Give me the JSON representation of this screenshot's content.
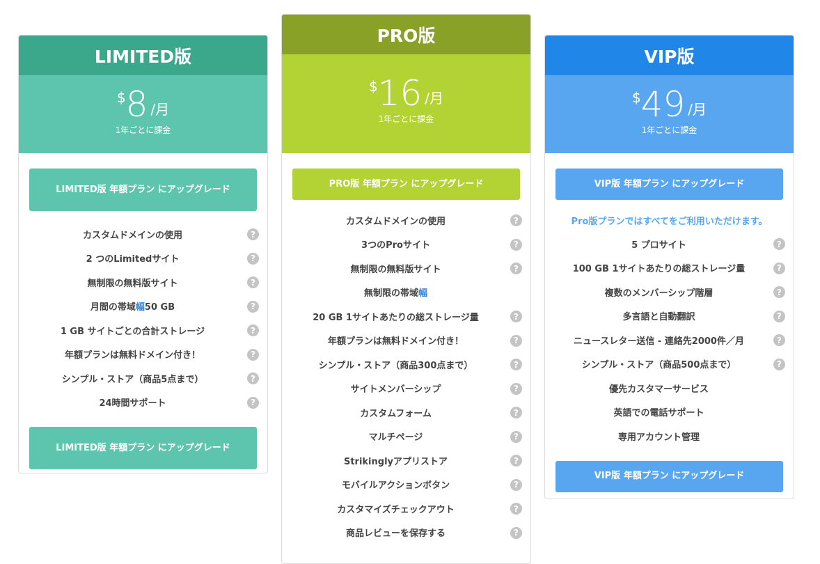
{
  "colors": {
    "limited_head": "#3ba78b",
    "limited_price": "#5dc4ad",
    "pro_head": "#88a126",
    "pro_price": "#b3d234",
    "vip_head": "#2087e8",
    "vip_price": "#59a6f0"
  },
  "plans": [
    {
      "id": "c1",
      "name": "LIMITED版",
      "currency": "$",
      "amount": "8",
      "per": "/月",
      "billing": "1年ごとに課金",
      "button": "LIMITED版 年額プラン にアップグレード",
      "note": "",
      "bottom_button": "LIMITED版 年額プラン にアップグレード",
      "features": [
        {
          "pre": "カスタムドメインの使用",
          "help": true
        },
        {
          "pre": "2 つのLimitedサイト",
          "help": true
        },
        {
          "pre": "無制限の無料版サイト",
          "help": true
        },
        {
          "pre": "月間の帯域",
          "hl": "幅",
          "post": "50 GB",
          "help": true
        },
        {
          "pre": "1 GB サイトごとの合計ストレージ",
          "help": true
        },
        {
          "pre": "年額プランは無料ドメイン付き！",
          "help": true
        },
        {
          "pre": "シンプル・ストア（商品5点まで）",
          "help": true
        },
        {
          "pre": "24時間サポート",
          "help": true
        }
      ]
    },
    {
      "id": "c2",
      "name": "PRO版",
      "currency": "$",
      "amount": "16",
      "per": "/月",
      "billing": "1年ごとに課金",
      "button": "PRO版 年額プラン にアップグレード",
      "note": "",
      "bottom_button": "",
      "features": [
        {
          "pre": "カスタムドメインの使用",
          "help": true
        },
        {
          "pre": "3つのProサイト",
          "help": true
        },
        {
          "pre": "無制限の無料版サイト",
          "help": true
        },
        {
          "pre": "無制限の帯域",
          "hl": "幅",
          "help": false
        },
        {
          "pre": "20 GB 1サイトあたりの総ストレージ量",
          "help": true
        },
        {
          "pre": "年額プランは無料ドメイン付き！",
          "help": true
        },
        {
          "pre": "シンプル・ストア（商品300点まで）",
          "help": true
        },
        {
          "pre": "サイトメンバーシップ",
          "help": true
        },
        {
          "pre": "カスタムフォーム",
          "help": true
        },
        {
          "pre": "マルチページ",
          "help": true
        },
        {
          "pre": "Strikinglyアプリストア",
          "help": true
        },
        {
          "pre": "モバイルアクションボタン",
          "help": true
        },
        {
          "pre": "カスタマイズチェックアウト",
          "help": true
        },
        {
          "pre": "商品レビューを保存する",
          "help": true
        }
      ]
    },
    {
      "id": "c3",
      "name": "VIP版",
      "currency": "$",
      "amount": "49",
      "per": "/月",
      "billing": "1年ごとに課金",
      "button": "VIP版 年額プラン にアップグレード",
      "note": "Pro版プランではすべてをご利用いただけます。",
      "bottom_button": "VIP版 年額プラン にアップグレード",
      "features": [
        {
          "pre": "5 プロサイト",
          "help": true
        },
        {
          "pre": "100 GB 1サイトあたりの総ストレージ量",
          "help": true
        },
        {
          "pre": "複数のメンバーシップ階層",
          "help": true
        },
        {
          "pre": "多言語と自動翻訳",
          "help": true
        },
        {
          "pre": "ニュースレター送信 - 連絡先2000件／月",
          "help": true
        },
        {
          "pre": "シンプル・ストア（商品500点まで）",
          "help": true
        },
        {
          "pre": "優先カスタマーサービス",
          "help": false
        },
        {
          "pre": "英語での電話サポート",
          "help": false
        },
        {
          "pre": "専用アカウント管理",
          "help": false
        }
      ]
    }
  ],
  "help_glyph": "?"
}
